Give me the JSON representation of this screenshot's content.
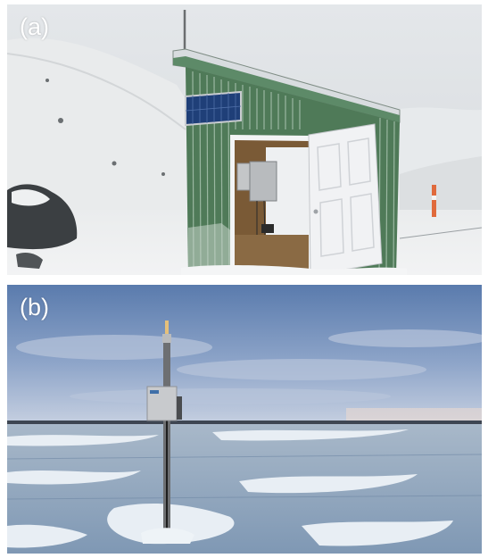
{
  "panels": [
    {
      "label": "(a)",
      "scene": "shelter-with-solar-panel",
      "colors": {
        "sky": "#dfe3e6",
        "snow": "#eef0f2",
        "shelter_wall": "#4f7a58",
        "door": "#f1f2f4",
        "interior": "#7a5a36"
      }
    },
    {
      "label": "(b)",
      "scene": "pole-mounted-sensor-box",
      "colors": {
        "sky_top": "#5f7fb0",
        "sky_bottom": "#c2cde0",
        "ice": "#8aa3bd",
        "snow": "#e8eef4",
        "pole": "#6d6f72",
        "box": "#c8cacd"
      }
    }
  ]
}
